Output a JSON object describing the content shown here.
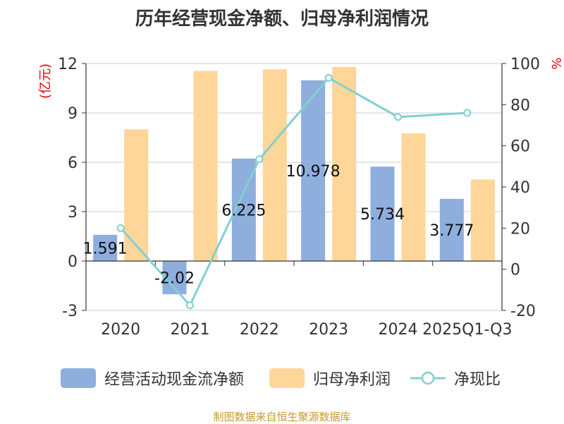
{
  "title": "历年经营现金净额、归母净利润情况",
  "source": "制图数据来自恒生聚源数据库",
  "colors": {
    "cash": "#8eaedd",
    "profit": "#ffd699",
    "ratio": "#82d0d0",
    "axis_unit": "#e60000"
  },
  "chart_data": {
    "type": "bar",
    "categories": [
      "2020",
      "2021",
      "2022",
      "2023",
      "2024",
      "2025Q1-Q3"
    ],
    "series": [
      {
        "name": "经营活动现金流净额",
        "type": "bar",
        "axis": "left",
        "values": [
          1.591,
          -2.02,
          6.225,
          10.978,
          5.734,
          3.777
        ],
        "labels": [
          "1.591",
          "-2.02",
          "6.225",
          "10.978",
          "5.734",
          "3.777"
        ]
      },
      {
        "name": "归母净利润",
        "type": "bar",
        "axis": "left",
        "values": [
          8.0,
          11.55,
          11.65,
          11.8,
          7.75,
          4.95
        ]
      },
      {
        "name": "净现比",
        "type": "line",
        "axis": "right",
        "values": [
          20,
          -17.5,
          53.5,
          93,
          74,
          76
        ]
      }
    ],
    "y_left": {
      "label": "(亿元)",
      "range": [
        -3,
        12
      ],
      "ticks": [
        -3,
        0,
        3,
        6,
        9,
        12
      ]
    },
    "y_right": {
      "label": "%",
      "range": [
        -20,
        100
      ],
      "ticks": [
        -20,
        0,
        20,
        40,
        60,
        80,
        100
      ]
    },
    "grid": true,
    "legend_position": "bottom"
  }
}
